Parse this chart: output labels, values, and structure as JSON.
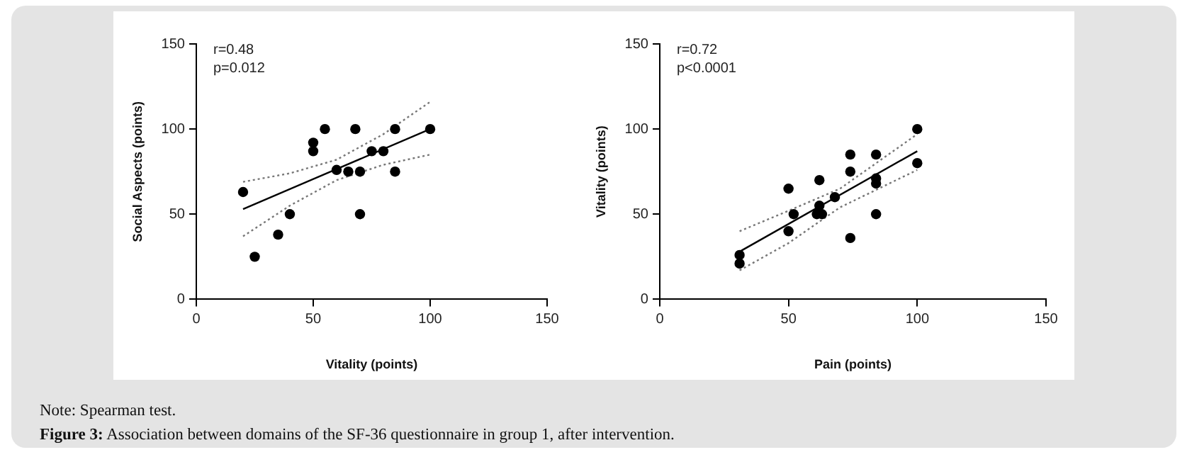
{
  "chart_data": [
    {
      "type": "scatter",
      "xlabel": "Vitality (points)",
      "ylabel": "Social Aspects (points)",
      "xlim": [
        0,
        150
      ],
      "ylim": [
        0,
        150
      ],
      "xticks": [
        0,
        50,
        100,
        150
      ],
      "yticks": [
        0,
        50,
        100,
        150
      ],
      "grid": false,
      "legend": false,
      "marker": "circle",
      "annotations": [
        "r=0.48",
        "p=0.012"
      ],
      "series": [
        {
          "color": "#000000",
          "x": [
            20,
            25,
            35,
            40,
            50,
            50,
            55,
            60,
            65,
            68,
            70,
            70,
            75,
            80,
            85,
            85,
            100
          ],
          "values": [
            63,
            25,
            38,
            50,
            92,
            87,
            100,
            76,
            75,
            100,
            75,
            50,
            87,
            87,
            100,
            75,
            100
          ]
        },
        {
          "type": "line",
          "color": "#000000",
          "line_style": "solid",
          "marker": "none",
          "x": [
            20,
            100
          ],
          "values": [
            53,
            100
          ]
        },
        {
          "type": "line",
          "color": "#777777",
          "line_style": "dotted",
          "marker": "none",
          "x": [
            20,
            40,
            60,
            80,
            100
          ],
          "values": [
            69,
            74,
            82,
            97,
            116
          ]
        },
        {
          "type": "line",
          "color": "#777777",
          "line_style": "dotted",
          "marker": "none",
          "x": [
            20,
            40,
            60,
            80,
            100
          ],
          "values": [
            37,
            55,
            70,
            79,
            85
          ]
        }
      ]
    },
    {
      "type": "scatter",
      "xlabel": "Pain (points)",
      "ylabel": "Vitality (points)",
      "xlim": [
        0,
        150
      ],
      "ylim": [
        0,
        150
      ],
      "xticks": [
        0,
        50,
        100,
        150
      ],
      "yticks": [
        0,
        50,
        100,
        150
      ],
      "grid": false,
      "legend": false,
      "marker": "circle",
      "annotations": [
        "r=0.72",
        "p<0.0001",
        "Note: Spearman test.",
        "Figure 3: Association between domains of the SF-36 questionnaire in group 1, after intervention."
      ],
      "series": [
        {
          "color": "#000000",
          "x": [
            31,
            31,
            50,
            50,
            52,
            62,
            62,
            61,
            63,
            68,
            74,
            74,
            74,
            84,
            84,
            84,
            84,
            100,
            100
          ],
          "values": [
            26,
            21,
            65,
            40,
            50,
            70,
            55,
            50,
            50,
            60,
            85,
            75,
            36,
            85,
            71,
            68,
            50,
            100,
            80
          ]
        },
        {
          "type": "line",
          "color": "#000000",
          "line_style": "solid",
          "marker": "none",
          "x": [
            31,
            100
          ],
          "values": [
            28,
            87
          ]
        },
        {
          "type": "line",
          "color": "#777777",
          "line_style": "dotted",
          "marker": "none",
          "x": [
            31,
            50,
            70,
            100
          ],
          "values": [
            40,
            52,
            65,
            97
          ]
        },
        {
          "type": "line",
          "color": "#777777",
          "line_style": "dotted",
          "marker": "none",
          "x": [
            31,
            50,
            70,
            100
          ],
          "values": [
            17,
            33,
            54,
            76
          ]
        }
      ]
    }
  ]
}
